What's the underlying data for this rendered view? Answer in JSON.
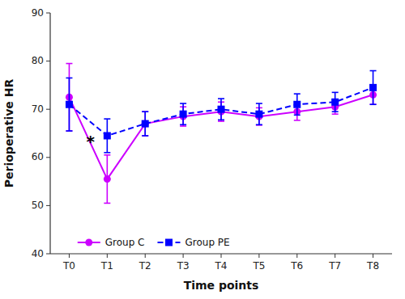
{
  "chart_data": {
    "type": "line",
    "categories": [
      "T0",
      "T1",
      "T2",
      "T3",
      "T4",
      "T5",
      "T6",
      "T7",
      "T8"
    ],
    "series": [
      {
        "name": "Group C",
        "color": "#CC00FF",
        "marker": "circle",
        "line_style": "solid",
        "values": [
          72.5,
          55.5,
          67.0,
          68.5,
          69.5,
          68.5,
          69.5,
          70.5,
          73.0
        ],
        "errors": [
          7.0,
          5.0,
          2.5,
          2.0,
          2.0,
          1.8,
          1.8,
          1.5,
          2.0
        ]
      },
      {
        "name": "Group PE",
        "color": "#0000FF",
        "marker": "square",
        "line_style": "dashed",
        "values": [
          71.0,
          64.5,
          67.0,
          69.0,
          70.0,
          69.0,
          71.0,
          71.5,
          74.5
        ],
        "errors": [
          5.5,
          3.5,
          2.5,
          2.2,
          2.2,
          2.2,
          2.2,
          2.0,
          3.5
        ]
      }
    ],
    "xlabel": "Time points",
    "ylabel": "Perioperative HR",
    "ylim": [
      40,
      90
    ],
    "yticks": [
      40,
      50,
      60,
      70,
      80,
      90
    ],
    "annotations": [
      {
        "text": "*",
        "x": "T1",
        "y": 63.0
      }
    ],
    "legend": "lower left",
    "grid": false
  }
}
